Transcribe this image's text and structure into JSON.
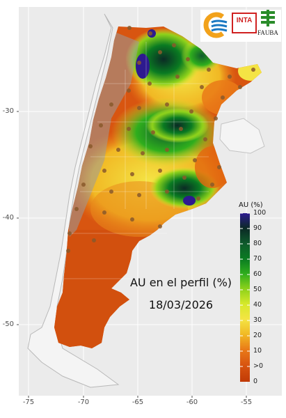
{
  "map": {
    "title_line1": "AU en el perfil (%)",
    "title_line2": "18/03/2026",
    "y_ticks": [
      "-30",
      "-40",
      "-50"
    ],
    "x_ticks": [
      "-75",
      "-70",
      "-65",
      "-60",
      "-55"
    ],
    "background": "#ebebeb",
    "grid_color": "#ffffff"
  },
  "legend": {
    "title": "AU (%)",
    "labels": [
      "100",
      "90",
      "80",
      "70",
      "60",
      "50",
      "40",
      "30",
      "20",
      "10",
      ">0",
      "0"
    ],
    "colors": [
      "#2d1a8f",
      "#0b2a25",
      "#0f5a2c",
      "#0a7b22",
      "#2fae1d",
      "#8fd21b",
      "#d7e92b",
      "#f4e444",
      "#f1b824",
      "#e97a18",
      "#d85510",
      "#c13a06"
    ]
  },
  "logos": {
    "inta_text": "INTA",
    "fauba_text": "FAUBA"
  }
}
